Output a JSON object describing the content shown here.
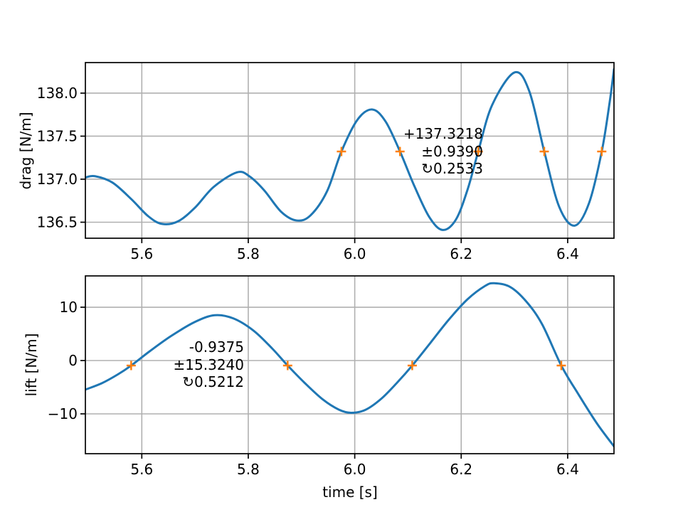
{
  "figure": {
    "background": "#ffffff"
  },
  "chart_data": [
    {
      "id": "drag",
      "type": "line",
      "title": "",
      "xlabel": "",
      "ylabel": "drag [N/m]",
      "xlim": [
        5.494,
        6.487
      ],
      "ylim": [
        136.314,
        138.355
      ],
      "xticks": [
        5.6,
        5.8,
        6.0,
        6.2,
        6.4
      ],
      "xtick_labels": [
        "5.6",
        "5.8",
        "6.0",
        "6.2",
        "6.4"
      ],
      "yticks": [
        136.5,
        137.0,
        137.5,
        138.0
      ],
      "ytick_labels": [
        "136.5",
        "137.0",
        "137.5",
        "138.0"
      ],
      "grid": true,
      "grid_color": "#b0b0b0",
      "line_color": "#1f77b4",
      "marker_color": "#ff7f0e",
      "series": [
        {
          "name": "drag",
          "points": [
            [
              5.494,
              137.02
            ],
            [
              5.512,
              137.035
            ],
            [
              5.545,
              136.96
            ],
            [
              5.58,
              136.77
            ],
            [
              5.612,
              136.57
            ],
            [
              5.638,
              136.48
            ],
            [
              5.668,
              136.51
            ],
            [
              5.7,
              136.67
            ],
            [
              5.735,
              136.91
            ],
            [
              5.779,
              137.08
            ],
            [
              5.803,
              137.03
            ],
            [
              5.83,
              136.87
            ],
            [
              5.862,
              136.62
            ],
            [
              5.891,
              136.52
            ],
            [
              5.917,
              136.58
            ],
            [
              5.948,
              136.86
            ],
            [
              5.975,
              137.322
            ],
            [
              6.005,
              137.69
            ],
            [
              6.033,
              137.81
            ],
            [
              6.058,
              137.67
            ],
            [
              6.085,
              137.322
            ],
            [
              6.112,
              136.92
            ],
            [
              6.14,
              136.56
            ],
            [
              6.165,
              136.41
            ],
            [
              6.19,
              136.53
            ],
            [
              6.212,
              136.88
            ],
            [
              6.232,
              137.322
            ],
            [
              6.258,
              137.86
            ],
            [
              6.3,
              138.24
            ],
            [
              6.328,
              138.02
            ],
            [
              6.356,
              137.322
            ],
            [
              6.384,
              136.68
            ],
            [
              6.413,
              136.46
            ],
            [
              6.44,
              136.72
            ],
            [
              6.464,
              137.322
            ],
            [
              6.479,
              137.9
            ],
            [
              6.487,
              138.28
            ]
          ]
        }
      ],
      "markers": {
        "symbol": "+",
        "y": 137.3218,
        "x": [
          5.975,
          6.085,
          6.232,
          6.356,
          6.464
        ]
      },
      "annotation": {
        "lines": [
          "+137.3218",
          "±0.9390",
          "↻0.2533"
        ],
        "mean": 137.3218,
        "amplitude": 0.939,
        "period": 0.2533
      }
    },
    {
      "id": "lift",
      "type": "line",
      "title": "",
      "xlabel": "time [s]",
      "ylabel": "lift [N/m]",
      "xlim": [
        5.494,
        6.487
      ],
      "ylim": [
        -17.47,
        15.87
      ],
      "xticks": [
        5.6,
        5.8,
        6.0,
        6.2,
        6.4
      ],
      "xtick_labels": [
        "5.6",
        "5.8",
        "6.0",
        "6.2",
        "6.4"
      ],
      "yticks": [
        -10,
        0,
        10
      ],
      "ytick_labels": [
        "−10",
        "0",
        "10"
      ],
      "grid": true,
      "grid_color": "#b0b0b0",
      "line_color": "#1f77b4",
      "marker_color": "#ff7f0e",
      "series": [
        {
          "name": "lift",
          "points": [
            [
              5.494,
              -5.45
            ],
            [
              5.525,
              -4.25
            ],
            [
              5.555,
              -2.6
            ],
            [
              5.58,
              -0.9375
            ],
            [
              5.615,
              1.75
            ],
            [
              5.655,
              4.6
            ],
            [
              5.7,
              7.25
            ],
            [
              5.737,
              8.5
            ],
            [
              5.772,
              7.9
            ],
            [
              5.81,
              5.6
            ],
            [
              5.845,
              2.25
            ],
            [
              5.874,
              -0.9375
            ],
            [
              5.906,
              -4.2
            ],
            [
              5.94,
              -7.3
            ],
            [
              5.97,
              -9.2
            ],
            [
              5.993,
              -9.8
            ],
            [
              6.02,
              -9.25
            ],
            [
              6.05,
              -7.15
            ],
            [
              6.08,
              -4.1
            ],
            [
              6.108,
              -0.9375
            ],
            [
              6.142,
              3.3
            ],
            [
              6.177,
              7.7
            ],
            [
              6.212,
              11.5
            ],
            [
              6.245,
              14.0
            ],
            [
              6.262,
              14.5
            ],
            [
              6.292,
              13.8
            ],
            [
              6.322,
              11.1
            ],
            [
              6.352,
              6.8
            ],
            [
              6.388,
              -0.9375
            ],
            [
              6.42,
              -6.3
            ],
            [
              6.455,
              -11.8
            ],
            [
              6.487,
              -16.1
            ]
          ]
        }
      ],
      "markers": {
        "symbol": "+",
        "y": -0.9375,
        "x": [
          5.58,
          5.874,
          6.108,
          6.388
        ]
      },
      "annotation": {
        "lines": [
          "-0.9375",
          "±15.3240",
          "↻0.5212"
        ],
        "mean": -0.9375,
        "amplitude": 15.324,
        "period": 0.5212
      }
    }
  ]
}
